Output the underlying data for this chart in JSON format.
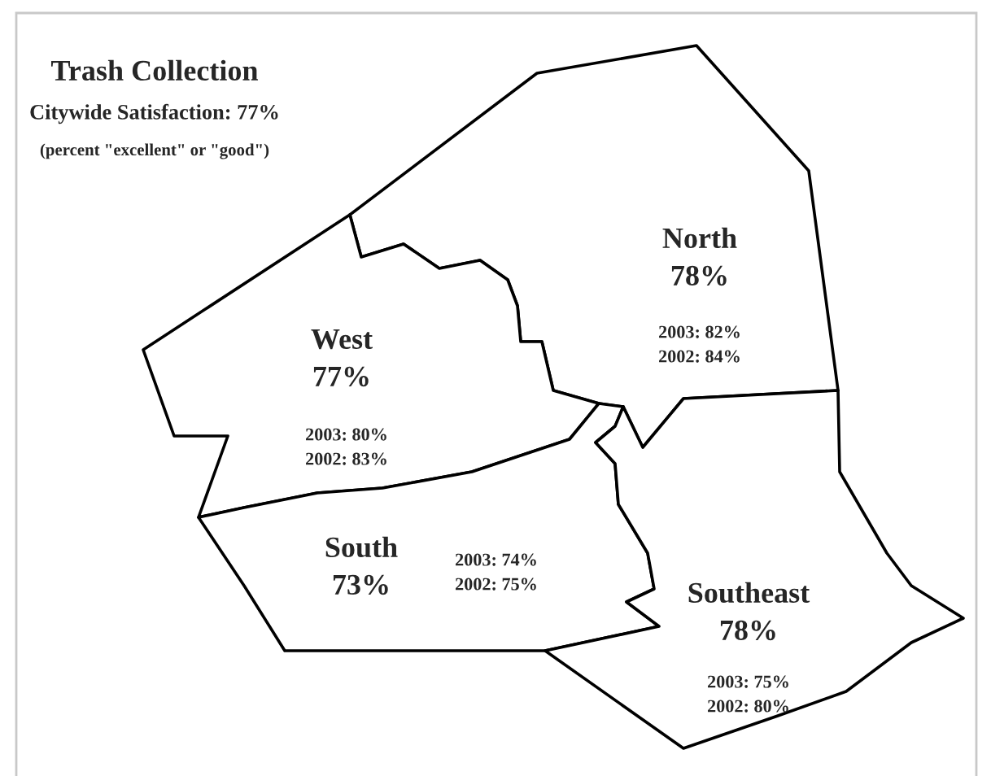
{
  "chart_data": {
    "type": "other",
    "title": "Trash Collection",
    "subtitle": "Citywide Satisfaction: 77%",
    "annotations": [
      "(percent \"excellent\" or \"good\")"
    ],
    "categories": [
      "North",
      "West",
      "South",
      "Southeast"
    ],
    "series": [
      {
        "values": [
          78,
          77,
          73,
          78
        ],
        "value_labels": [
          "78%",
          "77%",
          "73%",
          "78%"
        ]
      },
      {
        "values": [
          82,
          80,
          74,
          75
        ],
        "value_labels": [
          "2003: 82%",
          "2003: 80%",
          "2003: 74%",
          "2003: 75%"
        ]
      },
      {
        "values": [
          84,
          83,
          75,
          80
        ],
        "value_labels": [
          "2002: 84%",
          "2002: 83%",
          "2002: 75%",
          "2002: 80%"
        ]
      }
    ]
  }
}
